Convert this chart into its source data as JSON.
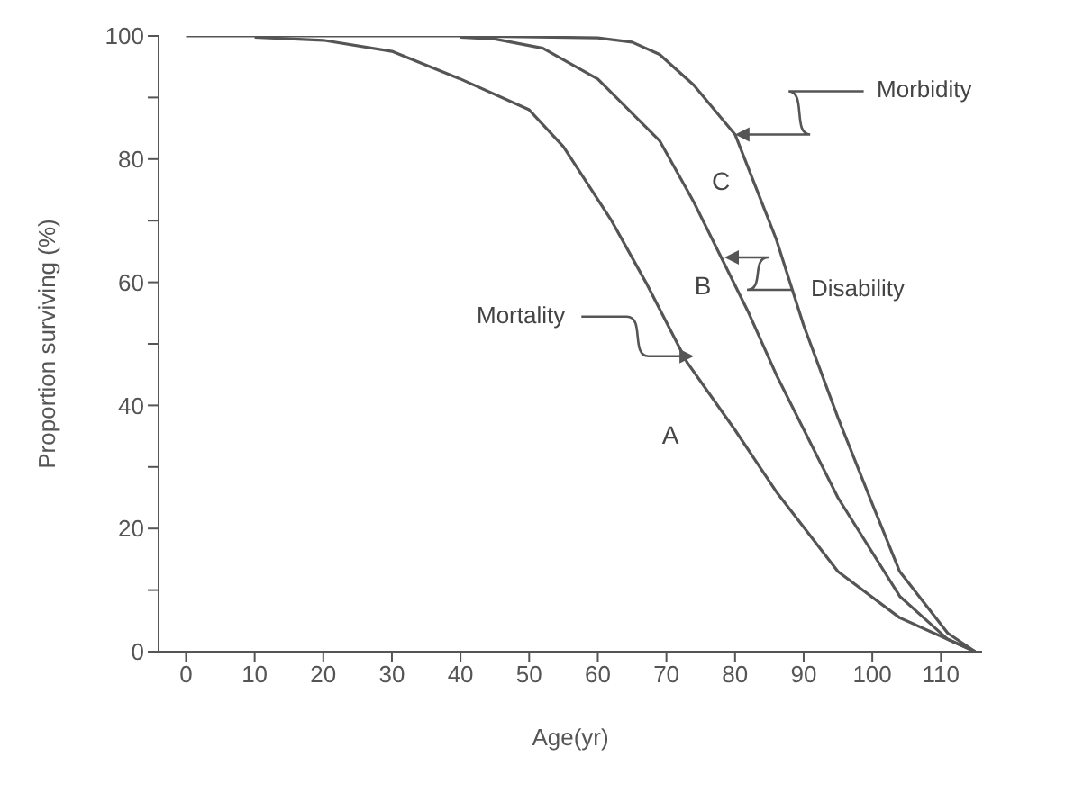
{
  "chart_data": {
    "type": "line",
    "xlabel": "Age(yr)",
    "ylabel": "Proportion surviving (%)",
    "xlim": [
      -4,
      116
    ],
    "xticks": [
      0,
      10,
      20,
      30,
      40,
      50,
      60,
      70,
      80,
      90,
      100,
      110
    ],
    "ylim": [
      0,
      100
    ],
    "yticks": [
      0,
      {
        "value": 10,
        "label": null
      },
      20,
      {
        "value": 30,
        "label": null
      },
      40,
      {
        "value": 50,
        "label": null
      },
      60,
      {
        "value": 70,
        "label": null
      },
      80,
      {
        "value": 90,
        "label": null
      },
      100
    ],
    "grid": false,
    "legend": false,
    "marker": "none",
    "line_style": "solid",
    "series": [
      {
        "color": "#555555",
        "x": [
          10,
          20,
          30,
          40,
          50,
          55,
          62,
          67,
          73,
          80,
          86,
          95,
          104,
          112,
          115
        ],
        "values": [
          99.8,
          99.3,
          97.5,
          93,
          88,
          82,
          70,
          60,
          47,
          36,
          26,
          13,
          5.5,
          1.5,
          0
        ]
      },
      {
        "color": "#555555",
        "x": [
          40,
          45,
          52,
          60,
          69,
          74,
          78,
          82,
          86,
          95,
          104,
          111,
          115
        ],
        "values": [
          99.8,
          99.5,
          98,
          93,
          83,
          73,
          64,
          55,
          45,
          25,
          9,
          2,
          0
        ]
      },
      {
        "color": "#555555",
        "x": [
          0,
          40,
          60,
          65,
          69,
          74,
          80,
          86,
          90,
          95,
          100,
          104,
          111,
          115
        ],
        "values": [
          100,
          100,
          99.7,
          99,
          97,
          92,
          84,
          67,
          53,
          38,
          24,
          13,
          3,
          0
        ]
      }
    ],
    "annotations": [
      {
        "text": "Mortality",
        "x": 74,
        "y": 48
      },
      "Disability",
      {
        "text": "Morbidity",
        "x": 80,
        "y": 84
      },
      "A",
      "B",
      "C"
    ]
  }
}
